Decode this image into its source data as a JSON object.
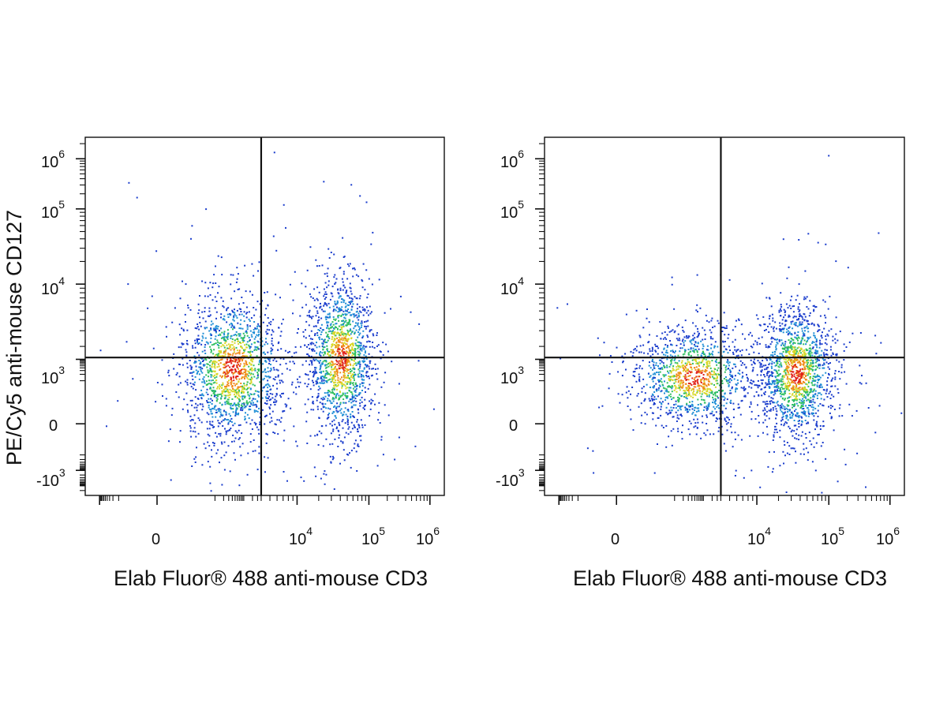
{
  "chart_data": [
    {
      "type": "scatter",
      "ylabel": "PE/Cy5 anti-mouse CD127",
      "xlabel": "Elab Fluor® 488 anti-mouse CD3",
      "x_scale": "biexponential",
      "y_scale": "biexponential",
      "x_ticks": [
        {
          "base": "0",
          "exp": ""
        },
        {
          "base": "10",
          "exp": "4"
        },
        {
          "base": "10",
          "exp": "5"
        },
        {
          "base": "10",
          "exp": "6"
        }
      ],
      "y_ticks": [
        {
          "base": "-10",
          "exp": "3"
        },
        {
          "base": "0",
          "exp": ""
        },
        {
          "base": "10",
          "exp": "3"
        },
        {
          "base": "10",
          "exp": "4"
        },
        {
          "base": "10",
          "exp": "5"
        },
        {
          "base": "10",
          "exp": "6"
        }
      ],
      "quadrant_gate": {
        "x": 4000,
        "y": 1500
      },
      "populations": [
        {
          "x_center": 400,
          "y_center": 400,
          "x_spread": 0.25,
          "y_spread": 0.18,
          "events": 1600
        },
        {
          "x_center": 40000,
          "y_center": 1300,
          "x_spread": 0.16,
          "y_spread": 0.2,
          "events": 1500
        }
      ],
      "colormap": [
        "#1a3ccc",
        "#1f8fd6",
        "#2fbf5f",
        "#d8d82a",
        "#f08a1a",
        "#e0201a"
      ]
    },
    {
      "type": "scatter",
      "ylabel": "",
      "xlabel": "Elab Fluor® 488 anti-mouse CD3",
      "x_scale": "biexponential",
      "y_scale": "biexponential",
      "x_ticks": [
        {
          "base": "0",
          "exp": ""
        },
        {
          "base": "10",
          "exp": "4"
        },
        {
          "base": "10",
          "exp": "5"
        },
        {
          "base": "10",
          "exp": "6"
        }
      ],
      "y_ticks": [
        {
          "base": "-10",
          "exp": "3"
        },
        {
          "base": "0",
          "exp": ""
        },
        {
          "base": "10",
          "exp": "3"
        },
        {
          "base": "10",
          "exp": "4"
        },
        {
          "base": "10",
          "exp": "5"
        },
        {
          "base": "10",
          "exp": "6"
        }
      ],
      "quadrant_gate": {
        "x": 4000,
        "y": 1500
      },
      "populations": [
        {
          "x_center": 450,
          "y_center": 150,
          "x_spread": 0.3,
          "y_spread": 0.12,
          "events": 1300
        },
        {
          "x_center": 35000,
          "y_center": 250,
          "x_spread": 0.18,
          "y_spread": 0.16,
          "events": 1500
        }
      ],
      "colormap": [
        "#1a3ccc",
        "#1f8fd6",
        "#2fbf5f",
        "#d8d82a",
        "#f08a1a",
        "#e0201a"
      ]
    }
  ]
}
